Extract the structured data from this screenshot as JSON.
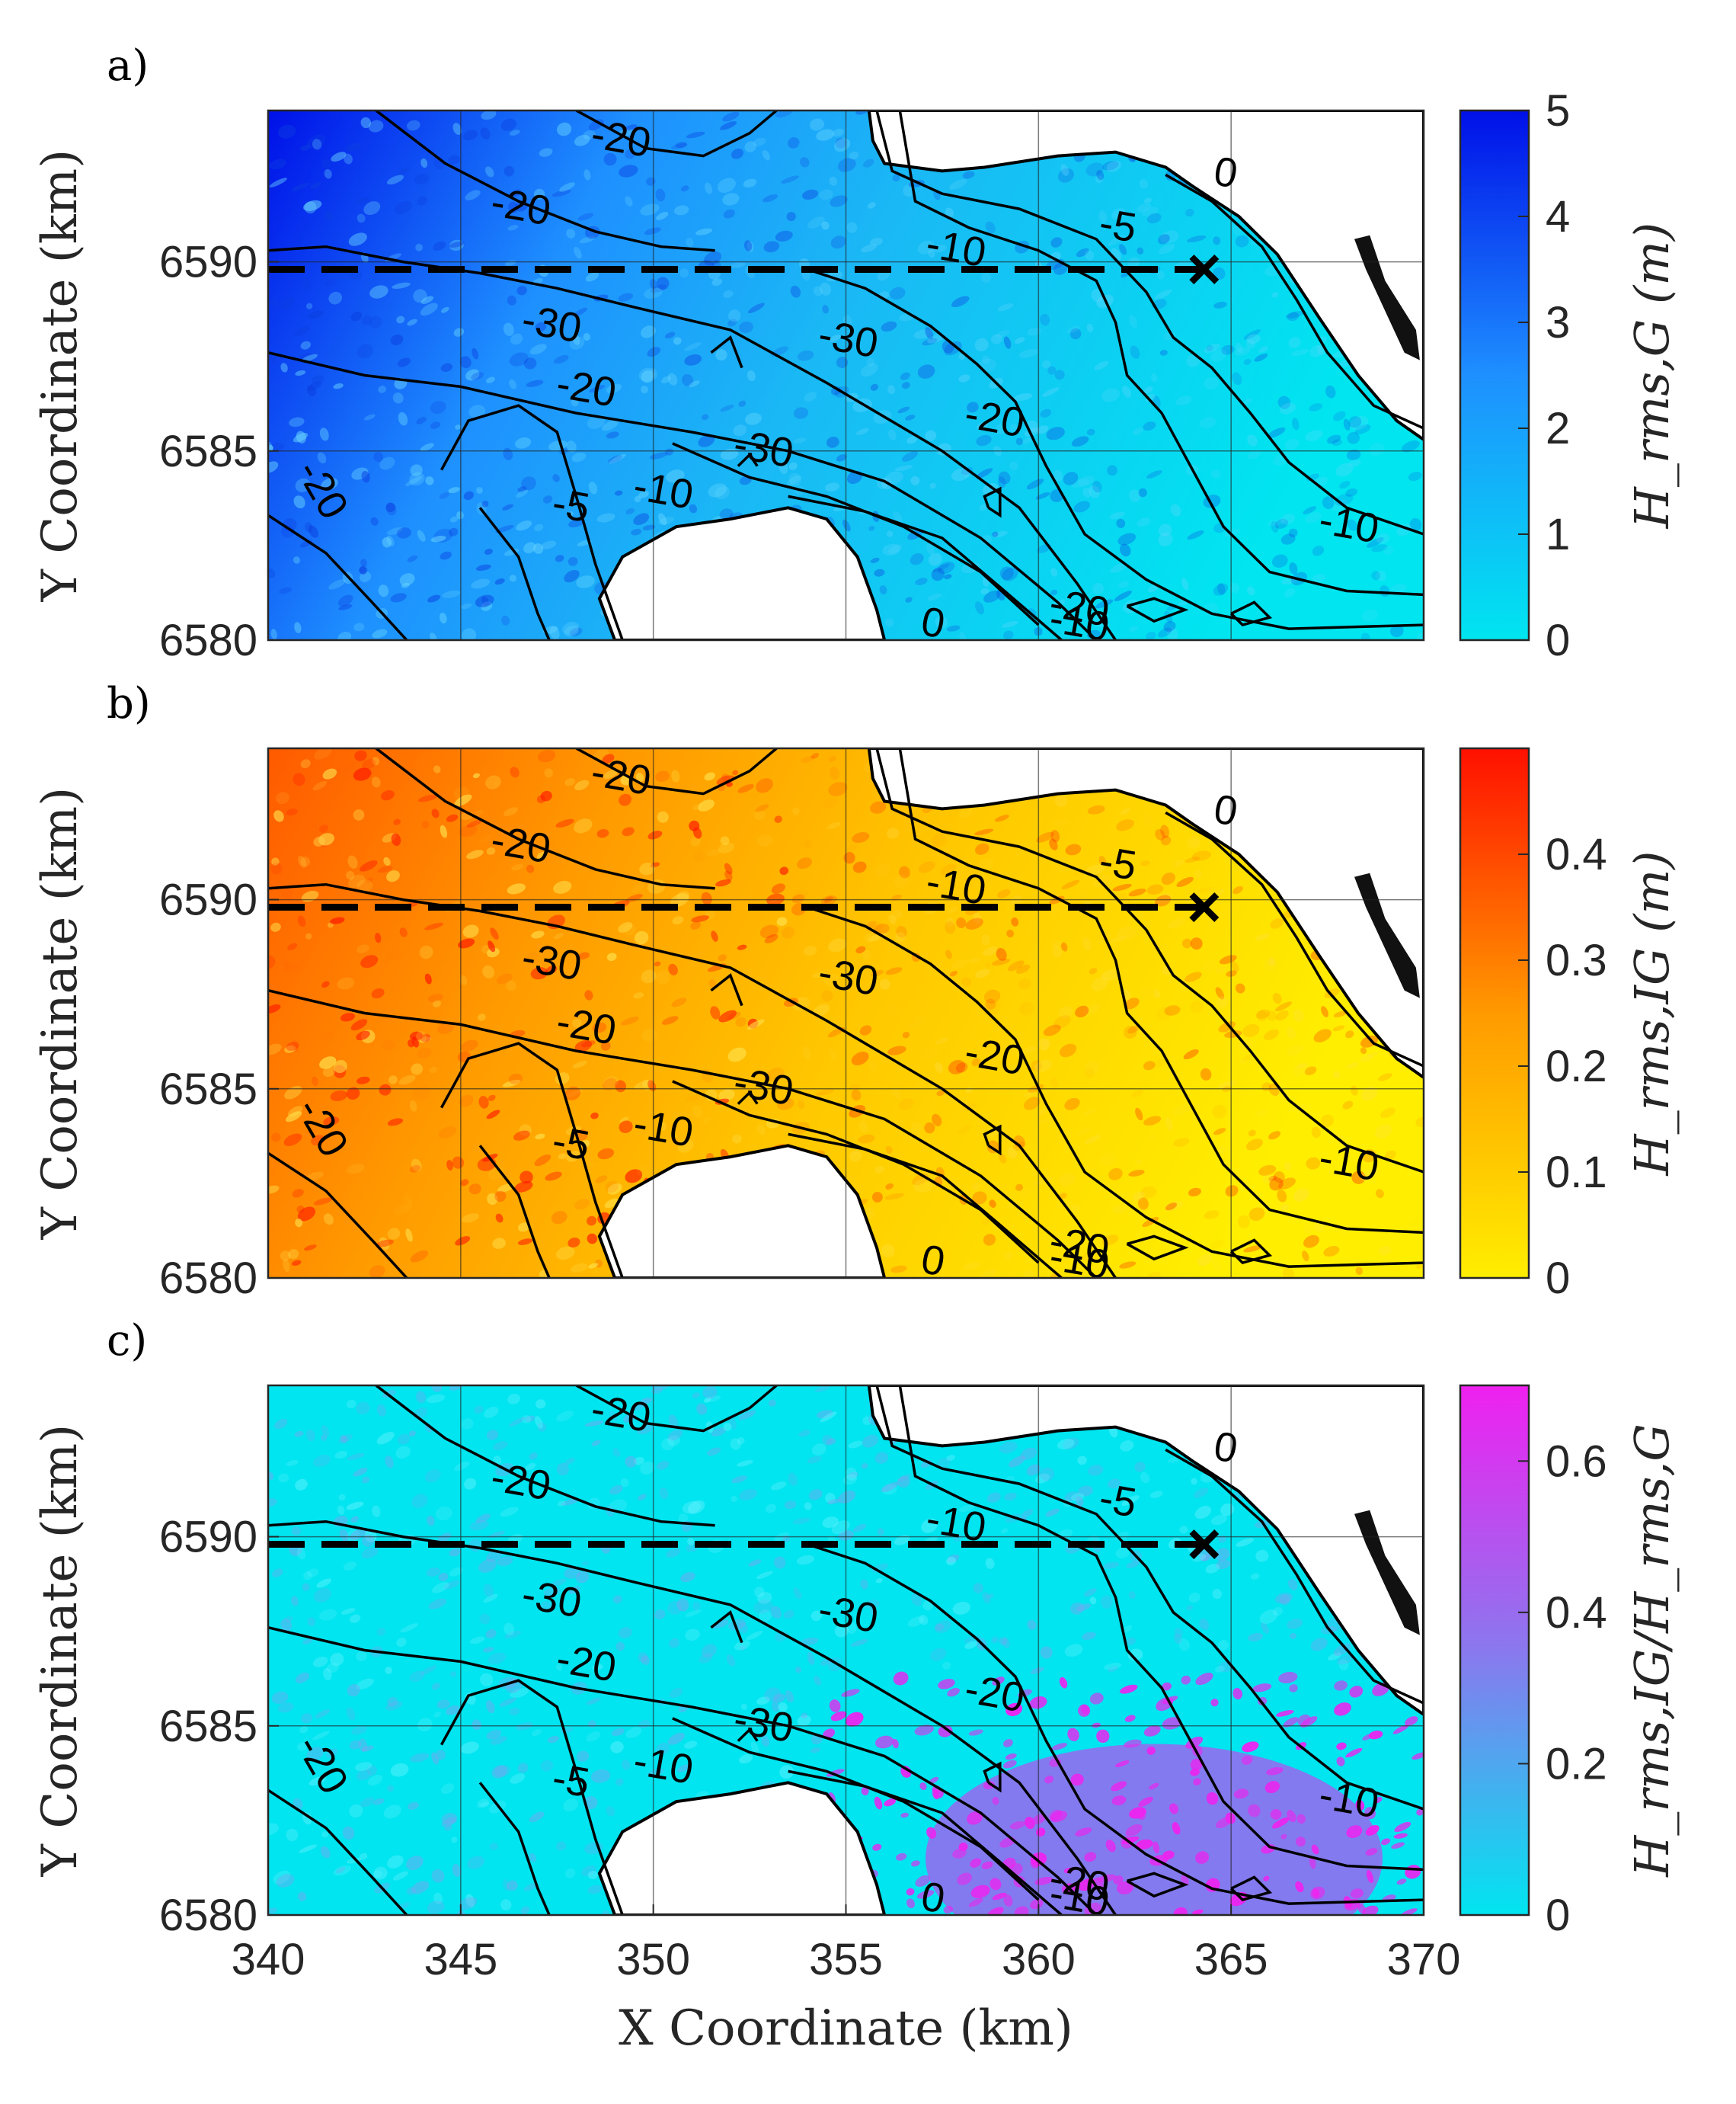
{
  "chart_data": [
    {
      "type": "heatmap",
      "panel": "a)",
      "xlabel": "",
      "ylabel": "Y Coordinate (km)",
      "xlim": [
        340,
        370
      ],
      "ylim": [
        6580,
        6594
      ],
      "xticks": [],
      "yticks": [
        6580,
        6585,
        6590
      ],
      "colorbar": {
        "label": "H_rms,G (m)",
        "range": [
          0,
          5
        ],
        "ticks": [
          0,
          1,
          2,
          3,
          4,
          5
        ],
        "colors": [
          "#00e5f0",
          "#1e90ff",
          "#0010e8"
        ]
      },
      "contour_labels": [
        "-20",
        "-20",
        "-10",
        "-5",
        "0",
        "-30",
        "-20",
        "-30",
        "-30",
        "-20",
        "-10",
        "-5",
        "-20",
        "0",
        "-20",
        "-10",
        "-10"
      ],
      "transect": {
        "y": 6589.8,
        "x_start": 340,
        "x_end": 364.3,
        "marker": "×"
      }
    },
    {
      "type": "heatmap",
      "panel": "b)",
      "xlabel": "",
      "ylabel": "Y Coordinate (km)",
      "xlim": [
        340,
        370
      ],
      "ylim": [
        6580,
        6594
      ],
      "xticks": [],
      "yticks": [
        6580,
        6585,
        6590
      ],
      "colorbar": {
        "label": "H_rms,IG (m)",
        "range": [
          0,
          0.5
        ],
        "ticks": [
          0,
          0.1,
          0.2,
          0.3,
          0.4
        ],
        "colors": [
          "#ffee00",
          "#ff9a00",
          "#ff1000"
        ]
      },
      "contour_labels": [
        "-20",
        "-20",
        "-10",
        "-5",
        "0",
        "-30",
        "-20",
        "-30",
        "-30",
        "-20",
        "-10",
        "-5",
        "-20",
        "0",
        "-20",
        "-10",
        "-10"
      ],
      "transect": {
        "y": 6589.8,
        "x_start": 340,
        "x_end": 364.3,
        "marker": "×"
      }
    },
    {
      "type": "heatmap",
      "panel": "c)",
      "xlabel": "X Coordinate (km)",
      "ylabel": "Y Coordinate (km)",
      "xlim": [
        340,
        370
      ],
      "ylim": [
        6580,
        6594
      ],
      "xticks": [
        340,
        345,
        350,
        355,
        360,
        365,
        370
      ],
      "yticks": [
        6580,
        6585,
        6590
      ],
      "colorbar": {
        "label": "H_rms,IG/H_rms,G",
        "range": [
          0,
          0.7
        ],
        "ticks": [
          0,
          0.2,
          0.4,
          0.6
        ],
        "colors": [
          "#00e5f0",
          "#8a78ee",
          "#f020f0"
        ]
      },
      "contour_labels": [
        "-20",
        "-20",
        "-10",
        "-5",
        "0",
        "-30",
        "-20",
        "-30",
        "-30",
        "-20",
        "-10",
        "-5",
        "-20",
        "0",
        "-20",
        "-10",
        "-10"
      ],
      "transect": {
        "y": 6589.8,
        "x_start": 340,
        "x_end": 364.3,
        "marker": "×"
      }
    }
  ]
}
